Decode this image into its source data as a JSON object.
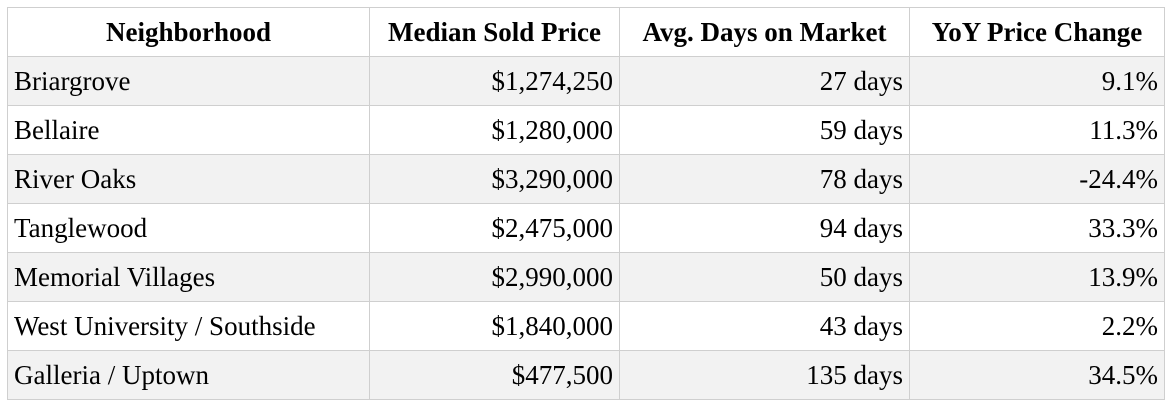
{
  "table": {
    "headers": [
      "Neighborhood",
      "Median Sold Price",
      "Avg. Days on Market",
      "YoY Price Change"
    ],
    "rows": [
      [
        "Briargrove",
        "$1,274,250",
        "27 days",
        "9.1%"
      ],
      [
        "Bellaire",
        "$1,280,000",
        "59 days",
        "11.3%"
      ],
      [
        "River Oaks",
        "$3,290,000",
        "78 days",
        "-24.4%"
      ],
      [
        "Tanglewood",
        "$2,475,000",
        "94 days",
        "33.3%"
      ],
      [
        "Memorial Villages",
        "$2,990,000",
        "50 days",
        "13.9%"
      ],
      [
        "West University / Southside",
        "$1,840,000",
        "43 days",
        "2.2%"
      ],
      [
        "Galleria / Uptown",
        "$477,500",
        "135 days",
        "34.5%"
      ]
    ]
  }
}
